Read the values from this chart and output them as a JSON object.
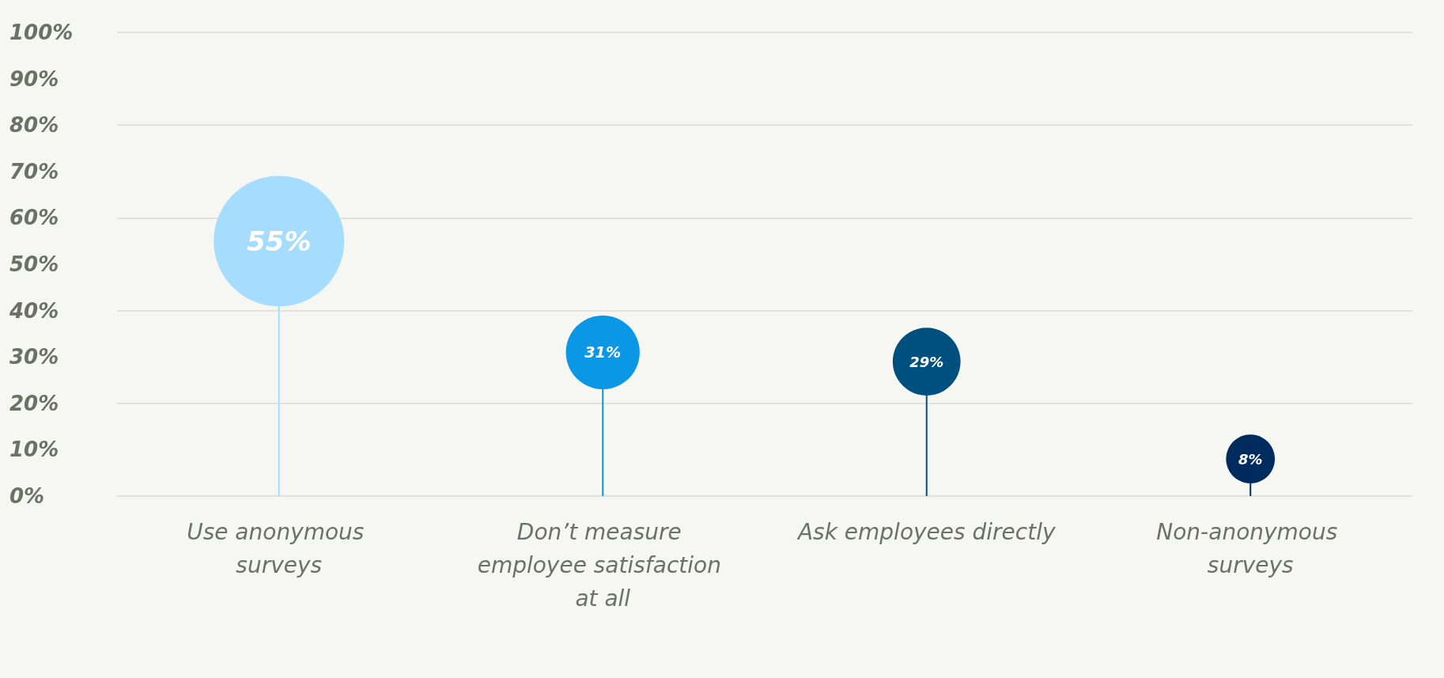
{
  "chart_data": {
    "type": "lollipop",
    "categories": [
      "Use anonymous surveys",
      "Don’t measure employee satisfaction at all",
      "Ask employees directly",
      "Non-anonymous surveys"
    ],
    "values": [
      55,
      31,
      29,
      8
    ],
    "sizes": [
      1,
      0.32,
      0.27,
      0.14
    ],
    "colors": [
      "#a6dcfe",
      "#0a97e6",
      "#00507f",
      "#002b5e"
    ],
    "value_labels": [
      "55%",
      "31%",
      "29%",
      "8%"
    ],
    "ylim": [
      0,
      100
    ],
    "yticks": [
      {
        "value": 0,
        "label": "0%"
      },
      {
        "value": 10,
        "label": "10%"
      },
      {
        "value": 20,
        "label": "20%"
      },
      {
        "value": 30,
        "label": "30%"
      },
      {
        "value": 40,
        "label": "40%"
      },
      {
        "value": 50,
        "label": "50%"
      },
      {
        "value": 60,
        "label": "60%"
      },
      {
        "value": 70,
        "label": "70%"
      },
      {
        "value": 80,
        "label": "80%"
      },
      {
        "value": 90,
        "label": "90%"
      },
      {
        "value": 100,
        "label": "100%"
      }
    ],
    "grid": "y"
  }
}
